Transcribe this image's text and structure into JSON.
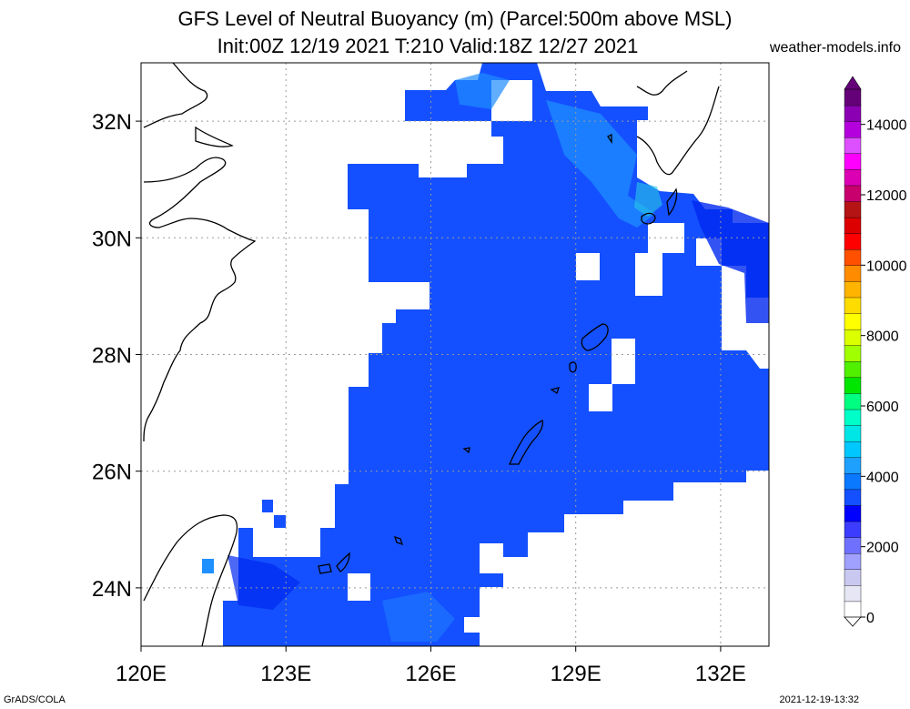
{
  "title": {
    "line1": "GFS Level of Neutral Buoyancy (m) (Parcel:500m above MSL)",
    "line2": "Init:00Z 12/19 2021 T:210 Valid:18Z 12/27 2021"
  },
  "source": "weather-models.info",
  "footer": {
    "left": "GrADS/COLA",
    "right": "2021-12-19-13:32"
  },
  "axes": {
    "lon_labels": [
      "120E",
      "123E",
      "126E",
      "129E",
      "132E"
    ],
    "lat_labels": [
      "24N",
      "26N",
      "28N",
      "30N",
      "32N"
    ],
    "lon_range": [
      120,
      133
    ],
    "lat_range": [
      23,
      33
    ]
  },
  "colorbar": {
    "labels": [
      "0",
      "2000",
      "4000",
      "6000",
      "8000",
      "10000",
      "12000",
      "14000"
    ],
    "colors": [
      "#ffffff",
      "#e6e6f5",
      "#c8c8f0",
      "#a0a0ff",
      "#7070ff",
      "#3c3cff",
      "#0000ff",
      "#1450ff",
      "#0a78ff",
      "#1ea0ff",
      "#00c8ff",
      "#00e6e6",
      "#00ffc8",
      "#00ff80",
      "#00e600",
      "#50f000",
      "#a0ff00",
      "#dcff00",
      "#ffff00",
      "#ffdc00",
      "#ffb400",
      "#ff8c00",
      "#ff5000",
      "#ff0000",
      "#dc0000",
      "#b41414",
      "#c8006e",
      "#dc00b4",
      "#ff00ff",
      "#dc50ff",
      "#b400dc",
      "#8c00b4",
      "#640078"
    ]
  },
  "colors": {
    "field_base": "#1450ff",
    "field_light": "#1e90ff",
    "field_dark": "#0028f0",
    "coast": "#000000",
    "grid": "#9a9a9a"
  }
}
